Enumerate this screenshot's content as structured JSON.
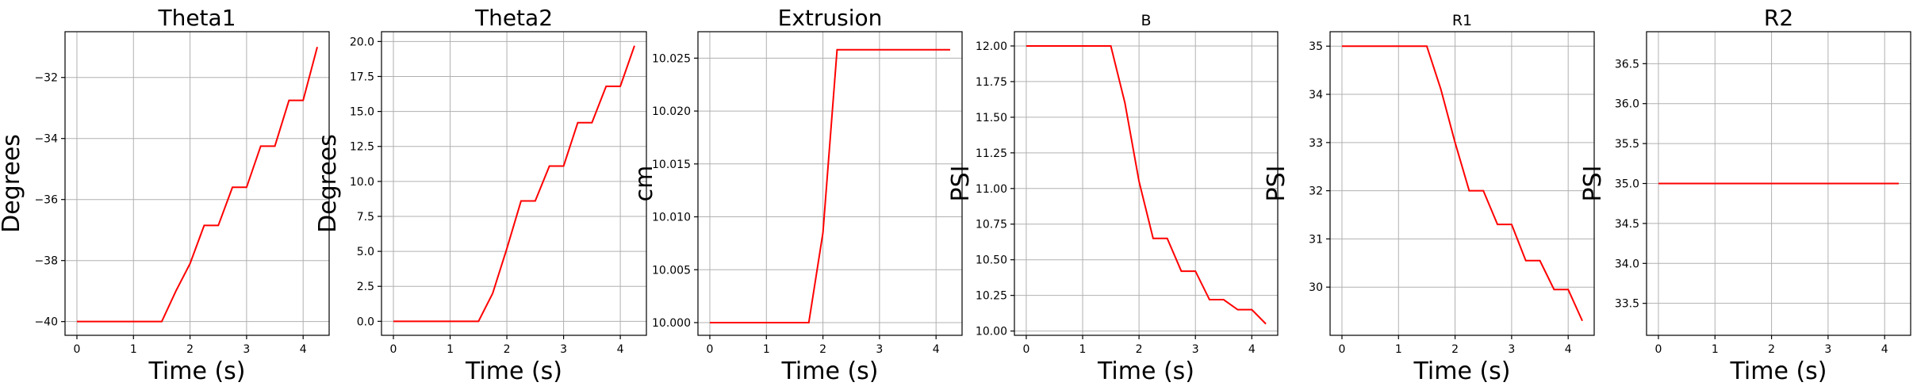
{
  "figure": {
    "series_color": "#ff0000"
  },
  "chart_data": [
    {
      "type": "line",
      "title": "Theta1",
      "xlabel": "Time (s)",
      "ylabel": "Degrees",
      "xlim": [
        -0.21,
        4.46
      ],
      "ylim": [
        -40.45,
        -30.5
      ],
      "xticks": [
        0,
        1,
        2,
        3,
        4
      ],
      "yticks": [
        -40,
        -38,
        -36,
        -34,
        -32
      ],
      "ytick_labels": [
        "−40",
        "−38",
        "−36",
        "−34",
        "−32"
      ],
      "grid": true,
      "series": [
        {
          "x": [
            0,
            1.5,
            1.75,
            2.0,
            2.25,
            2.5,
            2.75,
            3.0,
            3.25,
            3.5,
            3.75,
            4.0,
            4.25
          ],
          "y": [
            -40,
            -40,
            -39,
            -38.1,
            -36.85,
            -36.85,
            -35.6,
            -35.6,
            -34.25,
            -34.25,
            -32.75,
            -32.75,
            -31.0
          ]
        }
      ]
    },
    {
      "type": "line",
      "title": "Theta2",
      "xlabel": "Time (s)",
      "ylabel": "Degrees",
      "xlim": [
        -0.21,
        4.46
      ],
      "ylim": [
        -1.0,
        20.7
      ],
      "xticks": [
        0,
        1,
        2,
        3,
        4
      ],
      "yticks": [
        0.0,
        2.5,
        5.0,
        7.5,
        10.0,
        12.5,
        15.0,
        17.5,
        20.0
      ],
      "ytick_labels": [
        "0.0",
        "2.5",
        "5.0",
        "7.5",
        "10.0",
        "12.5",
        "15.0",
        "17.5",
        "20.0"
      ],
      "grid": true,
      "series": [
        {
          "x": [
            0,
            1.5,
            1.75,
            2.0,
            2.25,
            2.5,
            2.75,
            3.0,
            3.25,
            3.5,
            3.75,
            4.0,
            4.25
          ],
          "y": [
            0,
            0,
            2.0,
            5.2,
            8.6,
            8.6,
            11.1,
            11.1,
            14.2,
            14.2,
            16.8,
            16.8,
            19.7
          ]
        }
      ]
    },
    {
      "type": "line",
      "title": "Extrusion",
      "xlabel": "Time (s)",
      "ylabel": "cm",
      "xlim": [
        -0.21,
        4.46
      ],
      "ylim": [
        9.9988,
        10.0275
      ],
      "xticks": [
        0,
        1,
        2,
        3,
        4
      ],
      "yticks": [
        10.0,
        10.005,
        10.01,
        10.015,
        10.02,
        10.025
      ],
      "ytick_labels": [
        "10.000",
        "10.005",
        "10.010",
        "10.015",
        "10.020",
        "10.025"
      ],
      "grid": true,
      "series": [
        {
          "x": [
            0,
            1.75,
            2.0,
            2.25,
            4.25
          ],
          "y": [
            10.0,
            10.0,
            10.0085,
            10.0258,
            10.0258
          ]
        }
      ]
    },
    {
      "type": "line",
      "title": "B",
      "xlabel": "Time (s)",
      "ylabel": "PSI",
      "xlim": [
        -0.21,
        4.46
      ],
      "ylim": [
        9.97,
        12.1
      ],
      "xticks": [
        0,
        1,
        2,
        3,
        4
      ],
      "yticks": [
        10.0,
        10.25,
        10.5,
        10.75,
        11.0,
        11.25,
        11.5,
        11.75,
        12.0
      ],
      "ytick_labels": [
        "10.00",
        "10.25",
        "10.50",
        "10.75",
        "11.00",
        "11.25",
        "11.50",
        "11.75",
        "12.00"
      ],
      "grid": true,
      "series": [
        {
          "x": [
            0,
            1.5,
            1.75,
            2.0,
            2.25,
            2.5,
            2.75,
            3.0,
            3.25,
            3.5,
            3.75,
            4.0,
            4.25
          ],
          "y": [
            12.0,
            12.0,
            11.6,
            11.05,
            10.65,
            10.65,
            10.42,
            10.42,
            10.22,
            10.22,
            10.15,
            10.15,
            10.05
          ]
        }
      ]
    },
    {
      "type": "line",
      "title": "R1",
      "xlabel": "Time (s)",
      "ylabel": "PSI",
      "xlim": [
        -0.21,
        4.46
      ],
      "ylim": [
        29.0,
        35.3
      ],
      "xticks": [
        0,
        1,
        2,
        3,
        4
      ],
      "yticks": [
        30,
        31,
        32,
        33,
        34,
        35
      ],
      "ytick_labels": [
        "30",
        "31",
        "32",
        "33",
        "34",
        "35"
      ],
      "grid": true,
      "series": [
        {
          "x": [
            0,
            1.5,
            1.75,
            2.0,
            2.25,
            2.5,
            2.75,
            3.0,
            3.25,
            3.5,
            3.75,
            4.0,
            4.25
          ],
          "y": [
            35,
            35,
            34.1,
            33.0,
            32.0,
            32.0,
            31.3,
            31.3,
            30.55,
            30.55,
            29.95,
            29.95,
            29.3
          ]
        }
      ]
    },
    {
      "type": "line",
      "title": "R2",
      "xlabel": "Time (s)",
      "ylabel": "PSI",
      "xlim": [
        -0.21,
        4.46
      ],
      "ylim": [
        33.1,
        36.9
      ],
      "xticks": [
        0,
        1,
        2,
        3,
        4
      ],
      "yticks": [
        33.5,
        34.0,
        34.5,
        35.0,
        35.5,
        36.0,
        36.5
      ],
      "ytick_labels": [
        "33.5",
        "34.0",
        "34.5",
        "35.0",
        "35.5",
        "36.0",
        "36.5"
      ],
      "grid": true,
      "series": [
        {
          "x": [
            0,
            4.25
          ],
          "y": [
            35.0,
            35.0
          ]
        }
      ]
    }
  ]
}
